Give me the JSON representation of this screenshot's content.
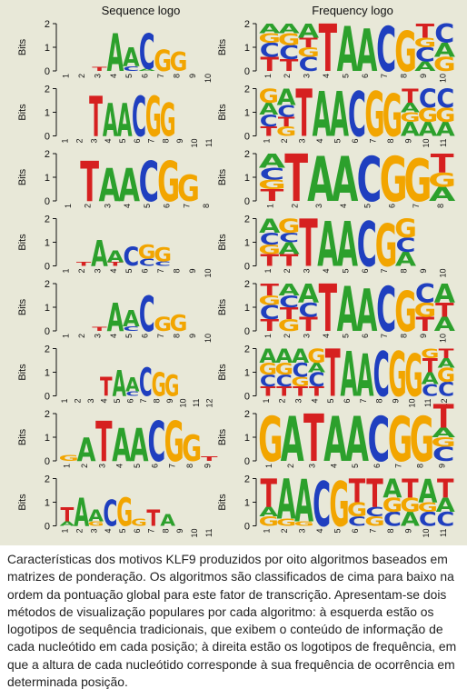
{
  "headers": {
    "left": "Sequence logo",
    "right": "Frequency logo"
  },
  "axis_label": "Bits",
  "y_ticks": [
    "2",
    "1",
    "0"
  ],
  "colors": {
    "A": "#2ca02c",
    "C": "#1f3fbf",
    "G": "#f2a500",
    "T": "#d62020",
    "panel_bg": "#e8e8d8"
  },
  "caption": "Características dos motivos KLF9 produzidos por oito algoritmos baseados em matrizes de ponderação. Os algoritmos são classificados de cima para baixo na ordem da pontuação global para este fator de transcrição. Apresentam-se dois métodos de visualização populares por cada algoritmo: à esquerda estão os logotipos de sequência tradicionais, que exibem o conteúdo de informação de cada nucleótido em cada posição; à direita estão os logotipos de frequência, em que a altura de cada nucleótido corresponde à sua frequência de ocorrência em determinada posição.",
  "rows": [
    {
      "positions": [
        "1",
        "2",
        "3",
        "4",
        "5",
        "6",
        "7",
        "8",
        "9",
        "10"
      ],
      "seq": [
        [],
        [],
        [
          [
            "T",
            0.08
          ]
        ],
        [
          [
            "A",
            0.8
          ]
        ],
        [
          [
            "C",
            0.1
          ],
          [
            "A",
            0.4
          ]
        ],
        [
          [
            "A",
            0.05
          ],
          [
            "C",
            0.75
          ]
        ],
        [
          [
            "G",
            0.45
          ]
        ],
        [
          [
            "G",
            0.4
          ]
        ],
        [],
        []
      ],
      "freq": [
        [
          [
            "T",
            0.3
          ],
          [
            "C",
            0.3
          ],
          [
            "G",
            0.2
          ],
          [
            "A",
            0.2
          ]
        ],
        [
          [
            "T",
            0.25
          ],
          [
            "C",
            0.3
          ],
          [
            "G",
            0.25
          ],
          [
            "A",
            0.2
          ]
        ],
        [
          [
            "C",
            0.3
          ],
          [
            "G",
            0.2
          ],
          [
            "T",
            0.2
          ],
          [
            "A",
            0.3
          ]
        ],
        [
          [
            "T",
            1
          ]
        ],
        [
          [
            "A",
            0.95
          ]
        ],
        [
          [
            "A",
            0.9
          ]
        ],
        [
          [
            "C",
            0.95
          ]
        ],
        [
          [
            "G",
            0.85
          ]
        ],
        [
          [
            "A",
            0.2
          ],
          [
            "C",
            0.3
          ],
          [
            "G",
            0.2
          ],
          [
            "T",
            0.3
          ]
        ],
        [
          [
            "G",
            0.3
          ],
          [
            "A",
            0.3
          ],
          [
            "C",
            0.4
          ]
        ]
      ]
    },
    {
      "positions": [
        "1",
        "2",
        "3",
        "4",
        "5",
        "6",
        "7",
        "8",
        "9",
        "10",
        "11"
      ],
      "seq": [
        [],
        [],
        [
          [
            "T",
            0.85
          ]
        ],
        [
          [
            "A",
            0.7
          ]
        ],
        [
          [
            "A",
            0.7
          ]
        ],
        [
          [
            "C",
            0.85
          ]
        ],
        [
          [
            "G",
            0.85
          ]
        ],
        [
          [
            "G",
            0.7
          ]
        ],
        [],
        [],
        []
      ],
      "freq": [
        [
          [
            "T",
            0.2
          ],
          [
            "C",
            0.25
          ],
          [
            "A",
            0.25
          ],
          [
            "G",
            0.3
          ]
        ],
        [
          [
            "G",
            0.2
          ],
          [
            "T",
            0.2
          ],
          [
            "C",
            0.25
          ],
          [
            "A",
            0.35
          ]
        ],
        [
          [
            "T",
            1
          ]
        ],
        [
          [
            "A",
            0.95
          ]
        ],
        [
          [
            "A",
            0.95
          ]
        ],
        [
          [
            "C",
            0.95
          ]
        ],
        [
          [
            "G",
            0.95
          ]
        ],
        [
          [
            "G",
            0.9
          ]
        ],
        [
          [
            "A",
            0.3
          ],
          [
            "G",
            0.2
          ],
          [
            "A",
            0.2
          ],
          [
            "T",
            0.3
          ]
        ],
        [
          [
            "A",
            0.3
          ],
          [
            "G",
            0.3
          ],
          [
            "C",
            0.4
          ]
        ],
        [
          [
            "A",
            0.3
          ],
          [
            "G",
            0.3
          ],
          [
            "C",
            0.4
          ]
        ]
      ]
    },
    {
      "positions": [
        "1",
        "2",
        "3",
        "4",
        "5",
        "6",
        "7",
        "8"
      ],
      "seq": [
        [],
        [
          [
            "T",
            0.85
          ]
        ],
        [
          [
            "A",
            0.7
          ]
        ],
        [
          [
            "A",
            0.7
          ]
        ],
        [
          [
            "C",
            0.85
          ]
        ],
        [
          [
            "G",
            0.85
          ]
        ],
        [
          [
            "G",
            0.55
          ]
        ],
        []
      ],
      "freq": [
        [
          [
            "T",
            0.25
          ],
          [
            "G",
            0.2
          ],
          [
            "C",
            0.25
          ],
          [
            "A",
            0.3
          ]
        ],
        [
          [
            "T",
            1
          ]
        ],
        [
          [
            "A",
            0.95
          ]
        ],
        [
          [
            "A",
            0.95
          ]
        ],
        [
          [
            "C",
            0.95
          ]
        ],
        [
          [
            "G",
            0.95
          ]
        ],
        [
          [
            "G",
            0.9
          ]
        ],
        [
          [
            "A",
            0.3
          ],
          [
            "G",
            0.3
          ],
          [
            "T",
            0.4
          ]
        ]
      ]
    },
    {
      "positions": [
        "1",
        "2",
        "3",
        "4",
        "5",
        "6",
        "7",
        "8",
        "9",
        "10"
      ],
      "seq": [
        [],
        [
          [
            "T",
            0.08
          ]
        ],
        [
          [
            "A",
            0.55
          ]
        ],
        [
          [
            "T",
            0.08
          ],
          [
            "A",
            0.25
          ]
        ],
        [
          [
            "C",
            0.4
          ]
        ],
        [
          [
            "C",
            0.15
          ],
          [
            "G",
            0.3
          ]
        ],
        [
          [
            "C",
            0.1
          ],
          [
            "G",
            0.3
          ]
        ],
        [],
        [],
        []
      ],
      "freq": [
        [
          [
            "T",
            0.25
          ],
          [
            "G",
            0.2
          ],
          [
            "C",
            0.25
          ],
          [
            "A",
            0.3
          ]
        ],
        [
          [
            "T",
            0.25
          ],
          [
            "A",
            0.25
          ],
          [
            "C",
            0.2
          ],
          [
            "G",
            0.3
          ]
        ],
        [
          [
            "T",
            1
          ]
        ],
        [
          [
            "A",
            0.95
          ]
        ],
        [
          [
            "A",
            0.95
          ]
        ],
        [
          [
            "C",
            0.95
          ]
        ],
        [
          [
            "G",
            0.9
          ]
        ],
        [
          [
            "A",
            0.3
          ],
          [
            "C",
            0.3
          ],
          [
            "G",
            0.4
          ]
        ],
        [],
        []
      ]
    },
    {
      "positions": [
        "1",
        "2",
        "3",
        "4",
        "5",
        "6",
        "7",
        "8",
        "9",
        "10"
      ],
      "seq": [
        [],
        [],
        [
          [
            "T",
            0.08
          ]
        ],
        [
          [
            "A",
            0.6
          ]
        ],
        [
          [
            "C",
            0.1
          ],
          [
            "A",
            0.35
          ]
        ],
        [
          [
            "C",
            0.75
          ]
        ],
        [
          [
            "G",
            0.3
          ]
        ],
        [
          [
            "G",
            0.35
          ]
        ],
        [],
        []
      ],
      "freq": [
        [
          [
            "T",
            0.25
          ],
          [
            "C",
            0.3
          ],
          [
            "G",
            0.2
          ],
          [
            "T",
            0.25
          ]
        ],
        [
          [
            "G",
            0.25
          ],
          [
            "T",
            0.25
          ],
          [
            "C",
            0.25
          ],
          [
            "A",
            0.25
          ]
        ],
        [
          [
            "T",
            0.3
          ],
          [
            "C",
            0.3
          ],
          [
            "A",
            0.4
          ]
        ],
        [
          [
            "T",
            1
          ]
        ],
        [
          [
            "A",
            0.95
          ]
        ],
        [
          [
            "A",
            0.9
          ]
        ],
        [
          [
            "C",
            0.95
          ]
        ],
        [
          [
            "G",
            0.85
          ]
        ],
        [
          [
            "T",
            0.3
          ],
          [
            "G",
            0.3
          ],
          [
            "C",
            0.4
          ]
        ],
        [
          [
            "A",
            0.3
          ],
          [
            "T",
            0.3
          ],
          [
            "A",
            0.4
          ]
        ]
      ]
    },
    {
      "positions": [
        "1",
        "2",
        "3",
        "4",
        "5",
        "6",
        "7",
        "8",
        "9",
        "10",
        "11",
        "12"
      ],
      "seq": [
        [],
        [],
        [],
        [
          [
            "T",
            0.4
          ]
        ],
        [
          [
            "A",
            0.55
          ]
        ],
        [
          [
            "C",
            0.1
          ],
          [
            "A",
            0.3
          ]
        ],
        [
          [
            "C",
            0.6
          ]
        ],
        [
          [
            "G",
            0.5
          ]
        ],
        [
          [
            "G",
            0.45
          ]
        ],
        [],
        [],
        []
      ],
      "freq": [
        [
          [
            "T",
            0.2
          ],
          [
            "C",
            0.25
          ],
          [
            "G",
            0.25
          ],
          [
            "A",
            0.3
          ]
        ],
        [
          [
            "T",
            0.2
          ],
          [
            "C",
            0.25
          ],
          [
            "G",
            0.25
          ],
          [
            "A",
            0.3
          ]
        ],
        [
          [
            "T",
            0.2
          ],
          [
            "G",
            0.2
          ],
          [
            "C",
            0.3
          ],
          [
            "A",
            0.3
          ]
        ],
        [
          [
            "T",
            0.2
          ],
          [
            "C",
            0.3
          ],
          [
            "A",
            0.2
          ],
          [
            "G",
            0.3
          ]
        ],
        [
          [
            "T",
            1
          ]
        ],
        [
          [
            "A",
            0.95
          ]
        ],
        [
          [
            "A",
            0.9
          ]
        ],
        [
          [
            "C",
            0.95
          ]
        ],
        [
          [
            "G",
            0.95
          ]
        ],
        [
          [
            "G",
            0.9
          ]
        ],
        [
          [
            "C",
            0.25
          ],
          [
            "A",
            0.25
          ],
          [
            "T",
            0.3
          ],
          [
            "G",
            0.2
          ]
        ],
        [
          [
            "C",
            0.3
          ],
          [
            "G",
            0.3
          ],
          [
            "A",
            0.2
          ],
          [
            "T",
            0.2
          ]
        ]
      ]
    },
    {
      "positions": [
        "1",
        "2",
        "3",
        "4",
        "5",
        "6",
        "7",
        "8",
        "9"
      ],
      "seq": [
        [
          [
            "G",
            0.12
          ]
        ],
        [
          [
            "A",
            0.5
          ]
        ],
        [
          [
            "T",
            0.85
          ]
        ],
        [
          [
            "A",
            0.7
          ]
        ],
        [
          [
            "A",
            0.7
          ]
        ],
        [
          [
            "C",
            0.85
          ]
        ],
        [
          [
            "G",
            0.85
          ]
        ],
        [
          [
            "G",
            0.55
          ]
        ],
        [
          [
            "T",
            0.1
          ]
        ]
      ],
      "freq": [
        [
          [
            "G",
            0.95
          ]
        ],
        [
          [
            "A",
            0.95
          ]
        ],
        [
          [
            "T",
            1
          ]
        ],
        [
          [
            "A",
            0.95
          ]
        ],
        [
          [
            "A",
            0.95
          ]
        ],
        [
          [
            "C",
            0.95
          ]
        ],
        [
          [
            "G",
            0.95
          ]
        ],
        [
          [
            "G",
            0.95
          ]
        ],
        [
          [
            "C",
            0.3
          ],
          [
            "G",
            0.2
          ],
          [
            "A",
            0.2
          ],
          [
            "T",
            0.5
          ]
        ]
      ]
    },
    {
      "positions": [
        "1",
        "2",
        "3",
        "4",
        "5",
        "6",
        "7",
        "8",
        "9",
        "10",
        "11"
      ],
      "seq": [
        [
          [
            "A",
            0.1
          ],
          [
            "T",
            0.3
          ]
        ],
        [
          [
            "A",
            0.6
          ]
        ],
        [
          [
            "G",
            0.1
          ],
          [
            "A",
            0.25
          ]
        ],
        [
          [
            "C",
            0.55
          ]
        ],
        [
          [
            "G",
            0.6
          ]
        ],
        [
          [
            "G",
            0.15
          ]
        ],
        [
          [
            "T",
            0.35
          ]
        ],
        [
          [
            "A",
            0.25
          ]
        ],
        [],
        [],
        []
      ],
      "freq": [
        [
          [
            "G",
            0.2
          ],
          [
            "A",
            0.2
          ],
          [
            "T",
            0.6
          ]
        ],
        [
          [
            "G",
            0.15
          ],
          [
            "A",
            0.85
          ]
        ],
        [
          [
            "G",
            0.1
          ],
          [
            "A",
            0.9
          ]
        ],
        [
          [
            "C",
            0.95
          ]
        ],
        [
          [
            "G",
            0.95
          ]
        ],
        [
          [
            "C",
            0.2
          ],
          [
            "G",
            0.3
          ],
          [
            "T",
            0.5
          ]
        ],
        [
          [
            "G",
            0.2
          ],
          [
            "C",
            0.2
          ],
          [
            "T",
            0.6
          ]
        ],
        [
          [
            "C",
            0.3
          ],
          [
            "G",
            0.3
          ],
          [
            "A",
            0.4
          ]
        ],
        [
          [
            "A",
            0.3
          ],
          [
            "G",
            0.3
          ],
          [
            "T",
            0.4
          ]
        ],
        [
          [
            "C",
            0.3
          ],
          [
            "G",
            0.2
          ],
          [
            "A",
            0.5
          ]
        ],
        [
          [
            "C",
            0.3
          ],
          [
            "A",
            0.3
          ],
          [
            "T",
            0.4
          ]
        ]
      ]
    }
  ]
}
